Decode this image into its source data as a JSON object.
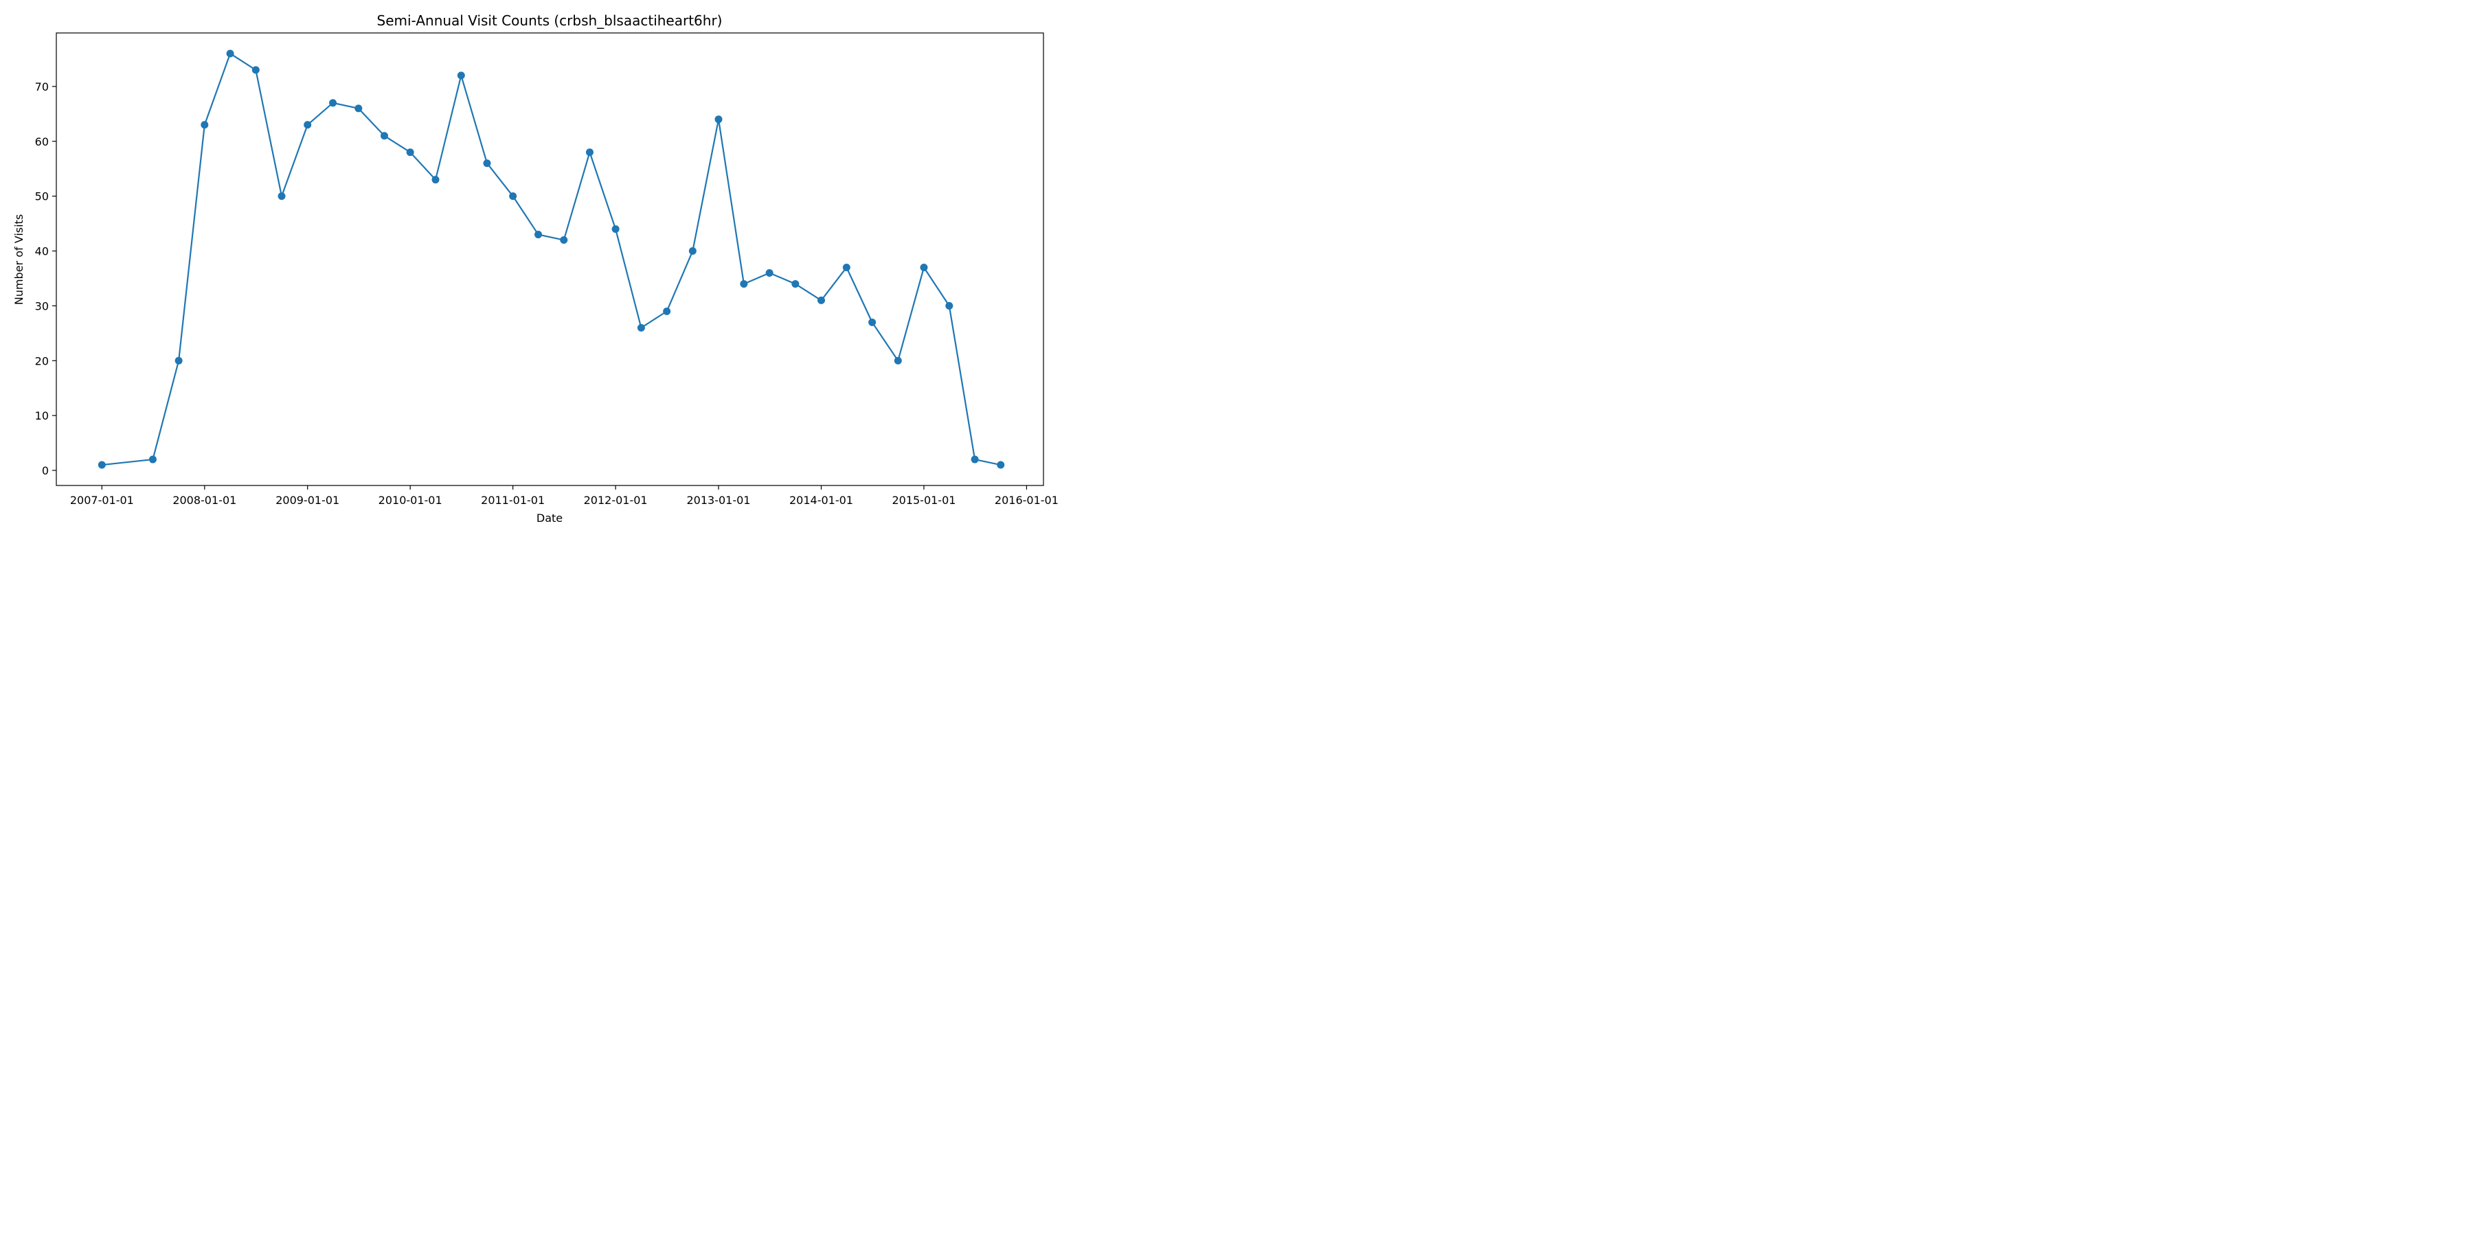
{
  "chart_data": {
    "type": "line",
    "title": "Semi-Annual Visit Counts (crbsh_blsaactiheart6hr)",
    "xlabel": "Date",
    "ylabel": "Number of Visits",
    "x_ticks": [
      "2007-01-01",
      "2008-01-01",
      "2009-01-01",
      "2010-01-01",
      "2011-01-01",
      "2012-01-01",
      "2013-01-01",
      "2014-01-01",
      "2015-01-01",
      "2016-01-01"
    ],
    "y_ticks": [
      0,
      10,
      20,
      30,
      40,
      50,
      60,
      70
    ],
    "xlim": [
      "2006-07-23",
      "2016-03-01"
    ],
    "ylim": [
      -2.75,
      79.75
    ],
    "grid": false,
    "color": "#1f77b4",
    "series": [
      {
        "x": [
          "2007-01-01",
          "2007-07-01",
          "2007-10-01",
          "2008-01-01",
          "2008-04-01",
          "2008-07-01",
          "2008-10-01",
          "2009-01-01",
          "2009-04-01",
          "2009-07-01",
          "2009-10-01",
          "2010-01-01",
          "2010-04-01",
          "2010-07-01",
          "2010-10-01",
          "2011-01-01",
          "2011-04-01",
          "2011-07-01",
          "2011-10-01",
          "2012-01-01",
          "2012-04-01",
          "2012-07-01",
          "2012-10-01",
          "2013-01-01",
          "2013-04-01",
          "2013-07-01",
          "2013-10-01",
          "2014-01-01",
          "2014-04-01",
          "2014-07-01",
          "2014-10-01",
          "2015-01-01",
          "2015-04-01",
          "2015-07-01",
          "2015-10-01"
        ],
        "values": [
          1,
          2,
          20,
          63,
          76,
          73,
          50,
          63,
          67,
          66,
          61,
          58,
          53,
          72,
          56,
          50,
          43,
          42,
          58,
          44,
          26,
          29,
          40,
          64,
          34,
          36,
          34,
          31,
          37,
          27,
          20,
          37,
          30,
          2,
          1
        ]
      }
    ]
  }
}
